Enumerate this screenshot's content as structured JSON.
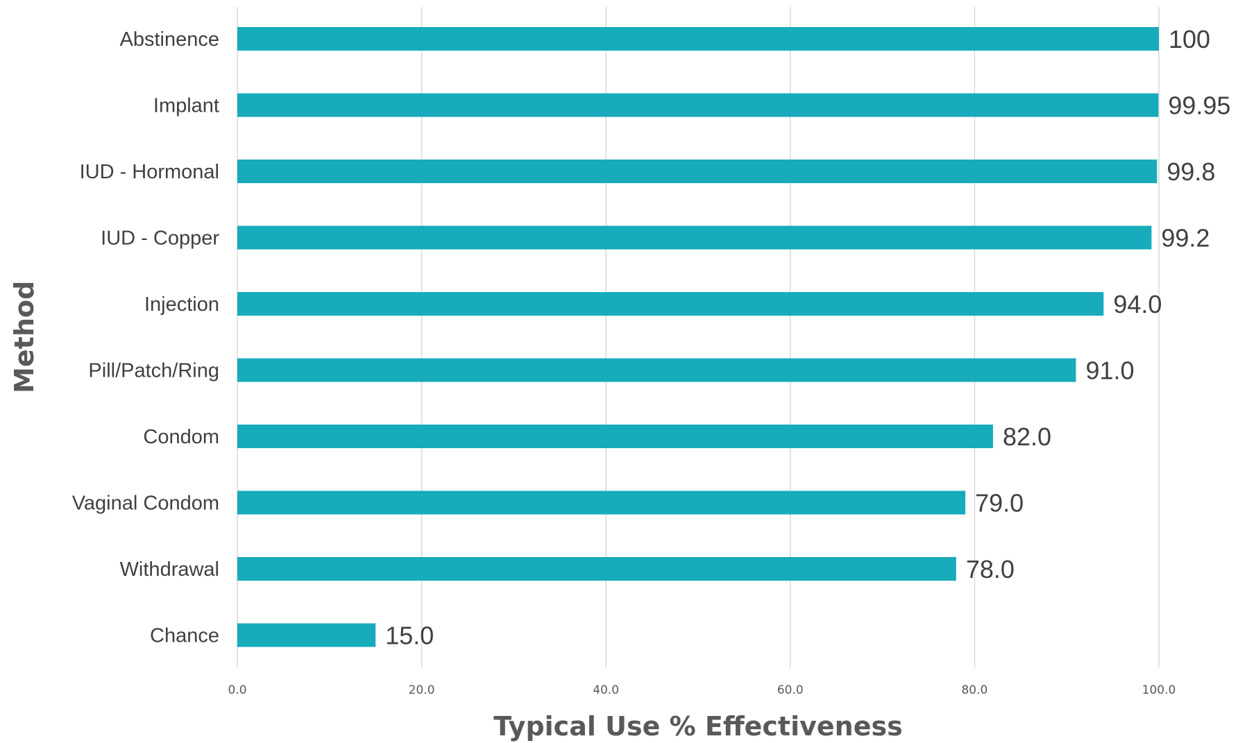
{
  "chart_data": {
    "type": "bar",
    "orientation": "horizontal",
    "title": "",
    "xlabel": "Typical Use % Effectiveness",
    "ylabel": "Method",
    "xlim": [
      0,
      100
    ],
    "grid": true,
    "legend": "none",
    "bar_color": "#17abbb",
    "x_ticks": [
      "0.0",
      "20.0",
      "40.0",
      "60.0",
      "80.0",
      "100.0"
    ],
    "x_tick_values": [
      0,
      20,
      40,
      60,
      80,
      100
    ],
    "categories": [
      "Abstinence",
      "Implant",
      "IUD - Hormonal",
      "IUD - Copper",
      "Injection",
      "Pill/Patch/Ring",
      "Condom",
      "Vaginal Condom",
      "Withdrawal",
      "Chance"
    ],
    "values": [
      100,
      99.95,
      99.8,
      99.2,
      94.0,
      91.0,
      82.0,
      79.0,
      78.0,
      15.0
    ],
    "value_labels": [
      "100",
      "99.95",
      "99.8",
      "99.2",
      "94.0",
      "91.0",
      "82.0",
      "79.0",
      "78.0",
      "15.0"
    ]
  }
}
